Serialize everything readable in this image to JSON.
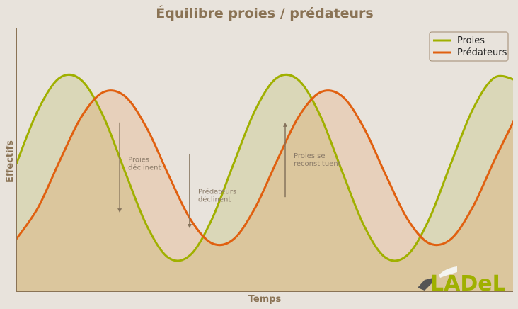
{
  "chart_data": {
    "type": "area",
    "title": "Équilibre proies / prédateurs",
    "xlabel": "Temps",
    "ylabel": "Effectifs",
    "xlim": [
      0,
      22.87
    ],
    "ylim": [
      0,
      100
    ],
    "grid": false,
    "x": [
      0,
      1,
      2,
      3,
      4,
      5,
      6,
      7,
      8,
      9,
      10,
      11,
      12,
      13,
      14,
      15,
      16,
      17,
      18,
      19,
      20,
      21,
      22,
      23
    ],
    "series": [
      {
        "name": "Proies",
        "color": "#a0b000",
        "values": [
          48.4,
          68.9,
          81.2,
          80.3,
          66.7,
          45.6,
          25.1,
          12.8,
          13.7,
          27.3,
          48.4,
          68.9,
          81.2,
          80.3,
          66.7,
          45.6,
          25.1,
          12.8,
          13.7,
          27.3,
          48.4,
          68.9,
          81.2,
          80.3
        ]
      },
      {
        "name": "Prédateurs",
        "color": "#e06010",
        "values": [
          19.8,
          31.8,
          49.6,
          66.4,
          75.7,
          74.2,
          62.2,
          44.4,
          27.6,
          18.3,
          19.8,
          31.8,
          49.6,
          66.4,
          75.7,
          74.2,
          62.2,
          44.4,
          27.6,
          18.3,
          19.8,
          31.8,
          49.6,
          66.4
        ]
      }
    ],
    "legend": "top-right",
    "annotations": [
      {
        "lines": [
          "Proies",
          "déclinent"
        ],
        "x": 4.76,
        "from": 64.2,
        "to": 29.9
      },
      {
        "lines": [
          "Prédateurs",
          "déclinent"
        ],
        "x": 7.98,
        "from": 52.3,
        "to": 24.0
      },
      {
        "lines": [
          "Proies se",
          "reconstituent"
        ],
        "x": 12.38,
        "from": 35.8,
        "to": 64.2
      }
    ]
  },
  "logo": {
    "text": "LADeL"
  }
}
